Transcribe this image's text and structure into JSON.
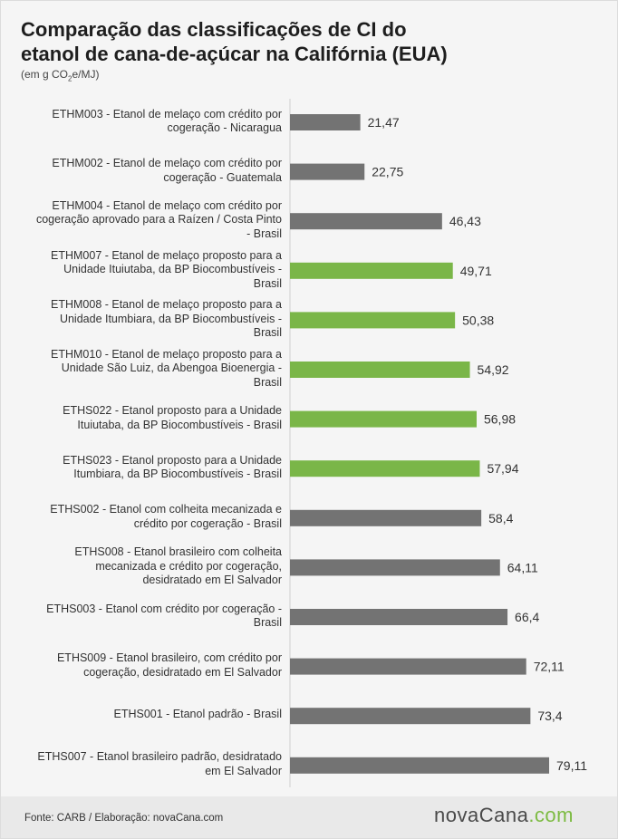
{
  "header": {
    "title_line1": "Comparação das classificações de CI do",
    "title_line2": "etanol de cana-de-açúcar na Califórnia (EUA)",
    "subtitle_prefix": "(em g CO",
    "subtitle_sub": "2",
    "subtitle_suffix": "e/MJ)"
  },
  "footer": {
    "source": "Fonte: CARB / Elaboração: novaCana.com",
    "logo_main": "novaCana",
    "logo_suffix": ".com"
  },
  "colors": {
    "gray": "#737373",
    "green": "#7ab648"
  },
  "chart_data": {
    "type": "bar",
    "orientation": "horizontal",
    "title": "Comparação das classificações de CI do etanol de cana-de-açúcar na Califórnia (EUA)",
    "subtitle": "(em g CO2e/MJ)",
    "grid": false,
    "xlim": [
      0,
      80
    ],
    "categories": [
      [
        "ETHM003 - Etanol de melaço com crédito por",
        "cogeração - Nicaragua"
      ],
      [
        "ETHM002 - Etanol de melaço com crédito por",
        "cogeração - Guatemala"
      ],
      [
        "ETHM004 - Etanol de melaço com crédito por",
        "cogeração aprovado para a Raízen / Costa Pinto",
        "- Brasil"
      ],
      [
        "ETHM007 - Etanol de melaço proposto para a",
        "Unidade Ituiutaba, da BP Biocombustíveis -",
        "Brasil"
      ],
      [
        "ETHM008 - Etanol de melaço proposto para a",
        "Unidade Itumbiara, da BP Biocombustíveis -",
        "Brasil"
      ],
      [
        "ETHM010 - Etanol de melaço proposto para a",
        "Unidade São Luiz, da Abengoa Bioenergia -",
        "Brasil"
      ],
      [
        "ETHS022 - Etanol proposto para a Unidade",
        "Ituiutaba, da BP Biocombustíveis - Brasil"
      ],
      [
        "ETHS023 - Etanol proposto para a Unidade",
        "Itumbiara, da BP Biocombustíveis - Brasil"
      ],
      [
        "ETHS002 - Etanol com colheita mecanizada e",
        "crédito por cogeração - Brasil"
      ],
      [
        "ETHS008 - Etanol brasileiro com colheita",
        "mecanizada e crédito por cogeração,",
        "desidratado em El Salvador"
      ],
      [
        "ETHS003 - Etanol com crédito por cogeração -",
        "Brasil"
      ],
      [
        "ETHS009 - Etanol brasileiro, com crédito por",
        "cogeração, desidratado em El Salvador"
      ],
      [
        "ETHS001 - Etanol padrão - Brasil"
      ],
      [
        "ETHS007 - Etanol brasileiro padrão, desidratado",
        "em El Salvador"
      ]
    ],
    "values": [
      21.47,
      22.75,
      46.43,
      49.71,
      50.38,
      54.92,
      56.98,
      57.94,
      58.4,
      64.11,
      66.4,
      72.11,
      73.4,
      79.11
    ],
    "value_labels": [
      "21,47",
      "22,75",
      "46,43",
      "49,71",
      "50,38",
      "54,92",
      "56,98",
      "57,94",
      "58,4",
      "64,11",
      "66,4",
      "72,11",
      "73,4",
      "79,11"
    ],
    "highlight": [
      false,
      false,
      false,
      true,
      true,
      true,
      true,
      true,
      false,
      false,
      false,
      false,
      false,
      false
    ]
  }
}
